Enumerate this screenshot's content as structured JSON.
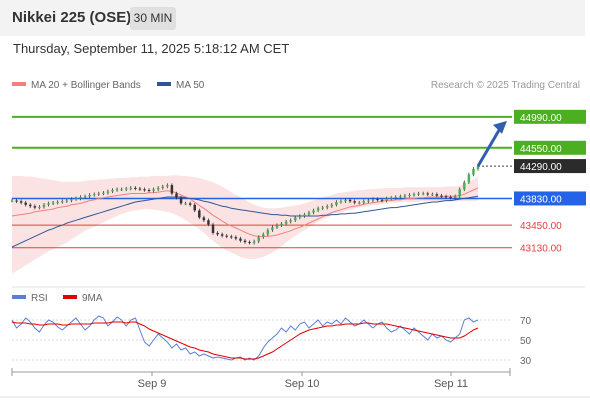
{
  "header": {
    "title": "Nikkei 225 (OSE)",
    "timeframe": "30 MIN",
    "datetime": "Thursday, September 11, 2025 5:18:12 AM CET"
  },
  "legend": {
    "ma20": {
      "label": "MA 20 + Bollinger Bands",
      "color": "#f08080"
    },
    "ma50": {
      "label": "MA 50",
      "color": "#2f5597"
    },
    "rsi": {
      "label": "RSI",
      "color": "#5b7fd6"
    },
    "rsi_ma": {
      "label": "9MA",
      "color": "#e00000"
    }
  },
  "credit": "Research © 2025 Trading Central",
  "chart_data": [
    {
      "type": "candlestick",
      "title": "Nikkei 225 (OSE)",
      "x_ticks": [
        "Sep 9",
        "Sep 10",
        "Sep 11"
      ],
      "ylim": [
        42600,
        45300
      ],
      "price_levels": [
        {
          "label": "44990.00",
          "value": 44990,
          "kind": "resistance",
          "color": "#4caf1f"
        },
        {
          "label": "44550.00",
          "value": 44550,
          "kind": "resistance",
          "color": "#4caf1f"
        },
        {
          "label": "44290.00",
          "value": 44290,
          "kind": "current",
          "color": "#2b2b2b"
        },
        {
          "label": "43830.00",
          "value": 43830,
          "kind": "pivot",
          "color": "#2463e8"
        },
        {
          "label": "43450.00",
          "value": 43450,
          "kind": "support",
          "color": "#e33e3e"
        },
        {
          "label": "43130.00",
          "value": 43130,
          "kind": "support",
          "color": "#e33e3e"
        }
      ],
      "close_series": [
        43800,
        43790,
        43770,
        43740,
        43720,
        43700,
        43710,
        43740,
        43760,
        43770,
        43780,
        43790,
        43800,
        43820,
        43830,
        43850,
        43860,
        43880,
        43890,
        43900,
        43910,
        43930,
        43950,
        43960,
        43960,
        43970,
        43980,
        43970,
        43960,
        43950,
        43940,
        43960,
        43980,
        44000,
        44020,
        43900,
        43840,
        43760,
        43760,
        43740,
        43660,
        43560,
        43520,
        43460,
        43340,
        43320,
        43300,
        43290,
        43280,
        43260,
        43230,
        43210,
        43200,
        43220,
        43280,
        43320,
        43380,
        43420,
        43450,
        43470,
        43500,
        43520,
        43560,
        43580,
        43600,
        43630,
        43660,
        43690,
        43700,
        43720,
        43740,
        43780,
        43790,
        43810,
        43790,
        43770,
        43770,
        43790,
        43800,
        43820,
        43810,
        43800,
        43830,
        43840,
        43850,
        43860,
        43870,
        43880,
        43890,
        43900,
        43900,
        43890,
        43890,
        43870,
        43860,
        43850,
        43840,
        43860,
        43960,
        44060,
        44170,
        44250,
        44290
      ],
      "ma20": [
        43580,
        43590,
        43600,
        43610,
        43620,
        43640,
        43650,
        43660,
        43670,
        43680,
        43700,
        43710,
        43720,
        43740,
        43750,
        43760,
        43780,
        43800,
        43810,
        43830,
        43840,
        43850,
        43860,
        43870,
        43880,
        43890,
        43900,
        43900,
        43900,
        43900,
        43910,
        43910,
        43920,
        43930,
        43940,
        43930,
        43910,
        43880,
        43850,
        43820,
        43780,
        43730,
        43690,
        43640,
        43590,
        43550,
        43510,
        43470,
        43440,
        43410,
        43380,
        43350,
        43320,
        43300,
        43290,
        43290,
        43290,
        43300,
        43310,
        43330,
        43350,
        43370,
        43400,
        43420,
        43450,
        43480,
        43510,
        43540,
        43570,
        43600,
        43630,
        43650,
        43670,
        43690,
        43710,
        43720,
        43730,
        43750,
        43760,
        43770,
        43780,
        43790,
        43800,
        43800,
        43810,
        43810,
        43820,
        43830,
        43830,
        43840,
        43840,
        43850,
        43850,
        43850,
        43850,
        43860,
        43860,
        43860,
        43870,
        43890,
        43920,
        43950,
        43980
      ],
      "ma50": [
        43140,
        43170,
        43200,
        43230,
        43260,
        43290,
        43320,
        43350,
        43380,
        43400,
        43430,
        43450,
        43480,
        43500,
        43520,
        43540,
        43560,
        43580,
        43600,
        43620,
        43640,
        43660,
        43680,
        43700,
        43720,
        43740,
        43760,
        43780,
        43790,
        43800,
        43810,
        43820,
        43830,
        43840,
        43850,
        43850,
        43850,
        43850,
        43840,
        43830,
        43820,
        43810,
        43790,
        43780,
        43760,
        43740,
        43720,
        43710,
        43690,
        43680,
        43670,
        43660,
        43650,
        43640,
        43630,
        43620,
        43610,
        43600,
        43600,
        43590,
        43590,
        43580,
        43580,
        43580,
        43580,
        43580,
        43580,
        43580,
        43590,
        43590,
        43600,
        43600,
        43610,
        43610,
        43620,
        43620,
        43630,
        43640,
        43650,
        43660,
        43670,
        43680,
        43690,
        43700,
        43700,
        43710,
        43720,
        43730,
        43740,
        43750,
        43760,
        43770,
        43780,
        43780,
        43790,
        43800,
        43800,
        43810,
        43820,
        43830,
        43840,
        43850,
        43860
      ],
      "boll_upper": [
        44150,
        44150,
        44150,
        44140,
        44140,
        44130,
        44120,
        44110,
        44100,
        44090,
        44080,
        44070,
        44070,
        44070,
        44070,
        44070,
        44080,
        44090,
        44090,
        44100,
        44100,
        44110,
        44110,
        44120,
        44120,
        44120,
        44130,
        44130,
        44140,
        44140,
        44140,
        44150,
        44150,
        44150,
        44150,
        44160,
        44160,
        44150,
        44150,
        44140,
        44130,
        44120,
        44100,
        44080,
        44060,
        44030,
        44000,
        43960,
        43920,
        43880,
        43850,
        43810,
        43770,
        43740,
        43720,
        43700,
        43690,
        43690,
        43690,
        43700,
        43710,
        43720,
        43730,
        43740,
        43760,
        43780,
        43800,
        43820,
        43840,
        43860,
        43880,
        43900,
        43910,
        43920,
        43930,
        43940,
        43950,
        43950,
        43960,
        43960,
        43970,
        43970,
        43980,
        43980,
        43980,
        43980,
        43990,
        43990,
        43990,
        43990,
        43990,
        43990,
        43990,
        43990,
        43990,
        44000,
        44000,
        44000,
        44010,
        44030,
        44060,
        44100,
        44140
      ],
      "boll_lower": [
        42760,
        42800,
        42840,
        42880,
        42920,
        42960,
        43000,
        43040,
        43080,
        43110,
        43140,
        43170,
        43200,
        43250,
        43290,
        43330,
        43370,
        43400,
        43430,
        43460,
        43490,
        43520,
        43550,
        43580,
        43610,
        43630,
        43650,
        43660,
        43670,
        43680,
        43680,
        43670,
        43660,
        43650,
        43640,
        43620,
        43590,
        43560,
        43520,
        43480,
        43440,
        43390,
        43340,
        43280,
        43230,
        43180,
        43130,
        43090,
        43060,
        43030,
        43000,
        42980,
        42970,
        42970,
        42980,
        43000,
        43030,
        43060,
        43100,
        43150,
        43200,
        43250,
        43300,
        43340,
        43380,
        43420,
        43460,
        43500,
        43530,
        43560,
        43590,
        43610,
        43630,
        43650,
        43670,
        43690,
        43700,
        43710,
        43720,
        43730,
        43740,
        43750,
        43760,
        43770,
        43770,
        43780,
        43780,
        43780,
        43780,
        43780,
        43790,
        43790,
        43790,
        43790,
        43790,
        43790,
        43790,
        43790,
        43790,
        43790,
        43790,
        43790,
        43800
      ]
    },
    {
      "type": "line",
      "title": "RSI",
      "ylim": [
        20,
        80
      ],
      "y_ticks": [
        70,
        50,
        30
      ],
      "x_ticks": [
        "Sep 9",
        "Sep 10",
        "Sep 11"
      ],
      "series": [
        {
          "name": "RSI",
          "values": [
            70,
            62,
            66,
            72,
            68,
            62,
            58,
            65,
            70,
            68,
            63,
            60,
            64,
            68,
            72,
            66,
            60,
            64,
            70,
            74,
            72,
            64,
            68,
            73,
            70,
            64,
            70,
            72,
            60,
            48,
            44,
            50,
            56,
            52,
            48,
            42,
            46,
            40,
            42,
            36,
            38,
            34,
            36,
            34,
            32,
            33,
            32,
            31,
            30,
            32,
            33,
            30,
            32,
            30,
            34,
            42,
            48,
            52,
            56,
            62,
            58,
            64,
            60,
            66,
            68,
            62,
            66,
            70,
            64,
            68,
            66,
            70,
            66,
            72,
            68,
            64,
            66,
            70,
            66,
            62,
            66,
            68,
            62,
            58,
            60,
            64,
            60,
            56,
            62,
            58,
            54,
            50,
            56,
            52,
            54,
            50,
            48,
            52,
            56,
            70,
            72,
            68,
            70
          ]
        },
        {
          "name": "9MA",
          "values": [
            68,
            67,
            67,
            67,
            66,
            66,
            65,
            65,
            66,
            66,
            66,
            65,
            65,
            66,
            66,
            66,
            66,
            66,
            67,
            67,
            67,
            67,
            68,
            68,
            68,
            67,
            68,
            68,
            66,
            64,
            61,
            59,
            57,
            55,
            53,
            51,
            49,
            47,
            45,
            43,
            42,
            40,
            39,
            38,
            36,
            35,
            34,
            33,
            32,
            32,
            32,
            31,
            31,
            31,
            32,
            34,
            36,
            38,
            41,
            44,
            47,
            50,
            53,
            56,
            58,
            60,
            61,
            62,
            63,
            64,
            64,
            65,
            65,
            66,
            66,
            66,
            66,
            67,
            67,
            66,
            66,
            66,
            66,
            65,
            64,
            63,
            62,
            61,
            60,
            59,
            58,
            57,
            56,
            55,
            54,
            53,
            52,
            52,
            52,
            54,
            57,
            60,
            62
          ]
        }
      ]
    }
  ]
}
